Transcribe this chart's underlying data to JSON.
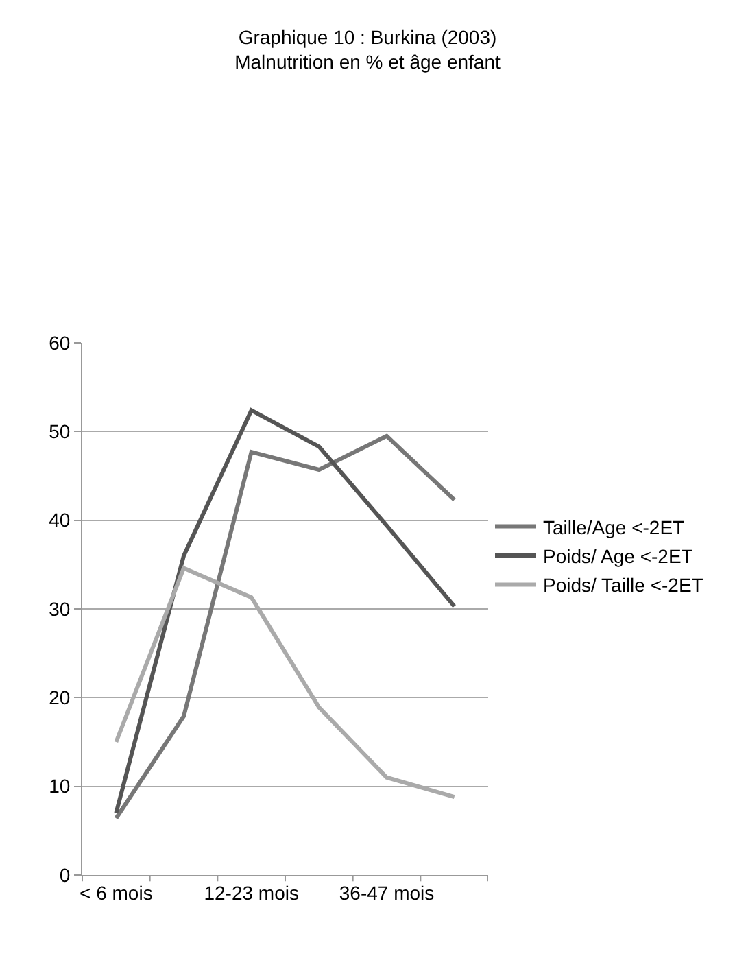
{
  "chart_data": {
    "type": "line",
    "title": "Graphique 10 : Burkina (2003)",
    "subtitle": "Malnutrition en % et âge enfant",
    "categories": [
      "< 6 mois",
      null,
      "12-23 mois",
      null,
      "36-47 mois",
      null
    ],
    "series": [
      {
        "name": "Taille/Age <-2ET",
        "color": "#777777",
        "values": [
          6.4,
          17.9,
          47.7,
          45.7,
          49.5,
          42.3
        ]
      },
      {
        "name": "Poids/ Age <-2ET",
        "color": "#555555",
        "values": [
          7.0,
          36.0,
          52.4,
          48.3,
          39.4,
          30.3
        ]
      },
      {
        "name": "Poids/ Taille <-2ET",
        "color": "#aaaaaa",
        "values": [
          15.0,
          34.6,
          31.3,
          18.9,
          11.0,
          8.8
        ]
      }
    ],
    "ylim": [
      0,
      60
    ],
    "yticks": [
      0,
      10,
      20,
      30,
      40,
      50,
      60
    ],
    "grid": "y",
    "legend": "right",
    "marker": "none",
    "line_style": "solid"
  }
}
